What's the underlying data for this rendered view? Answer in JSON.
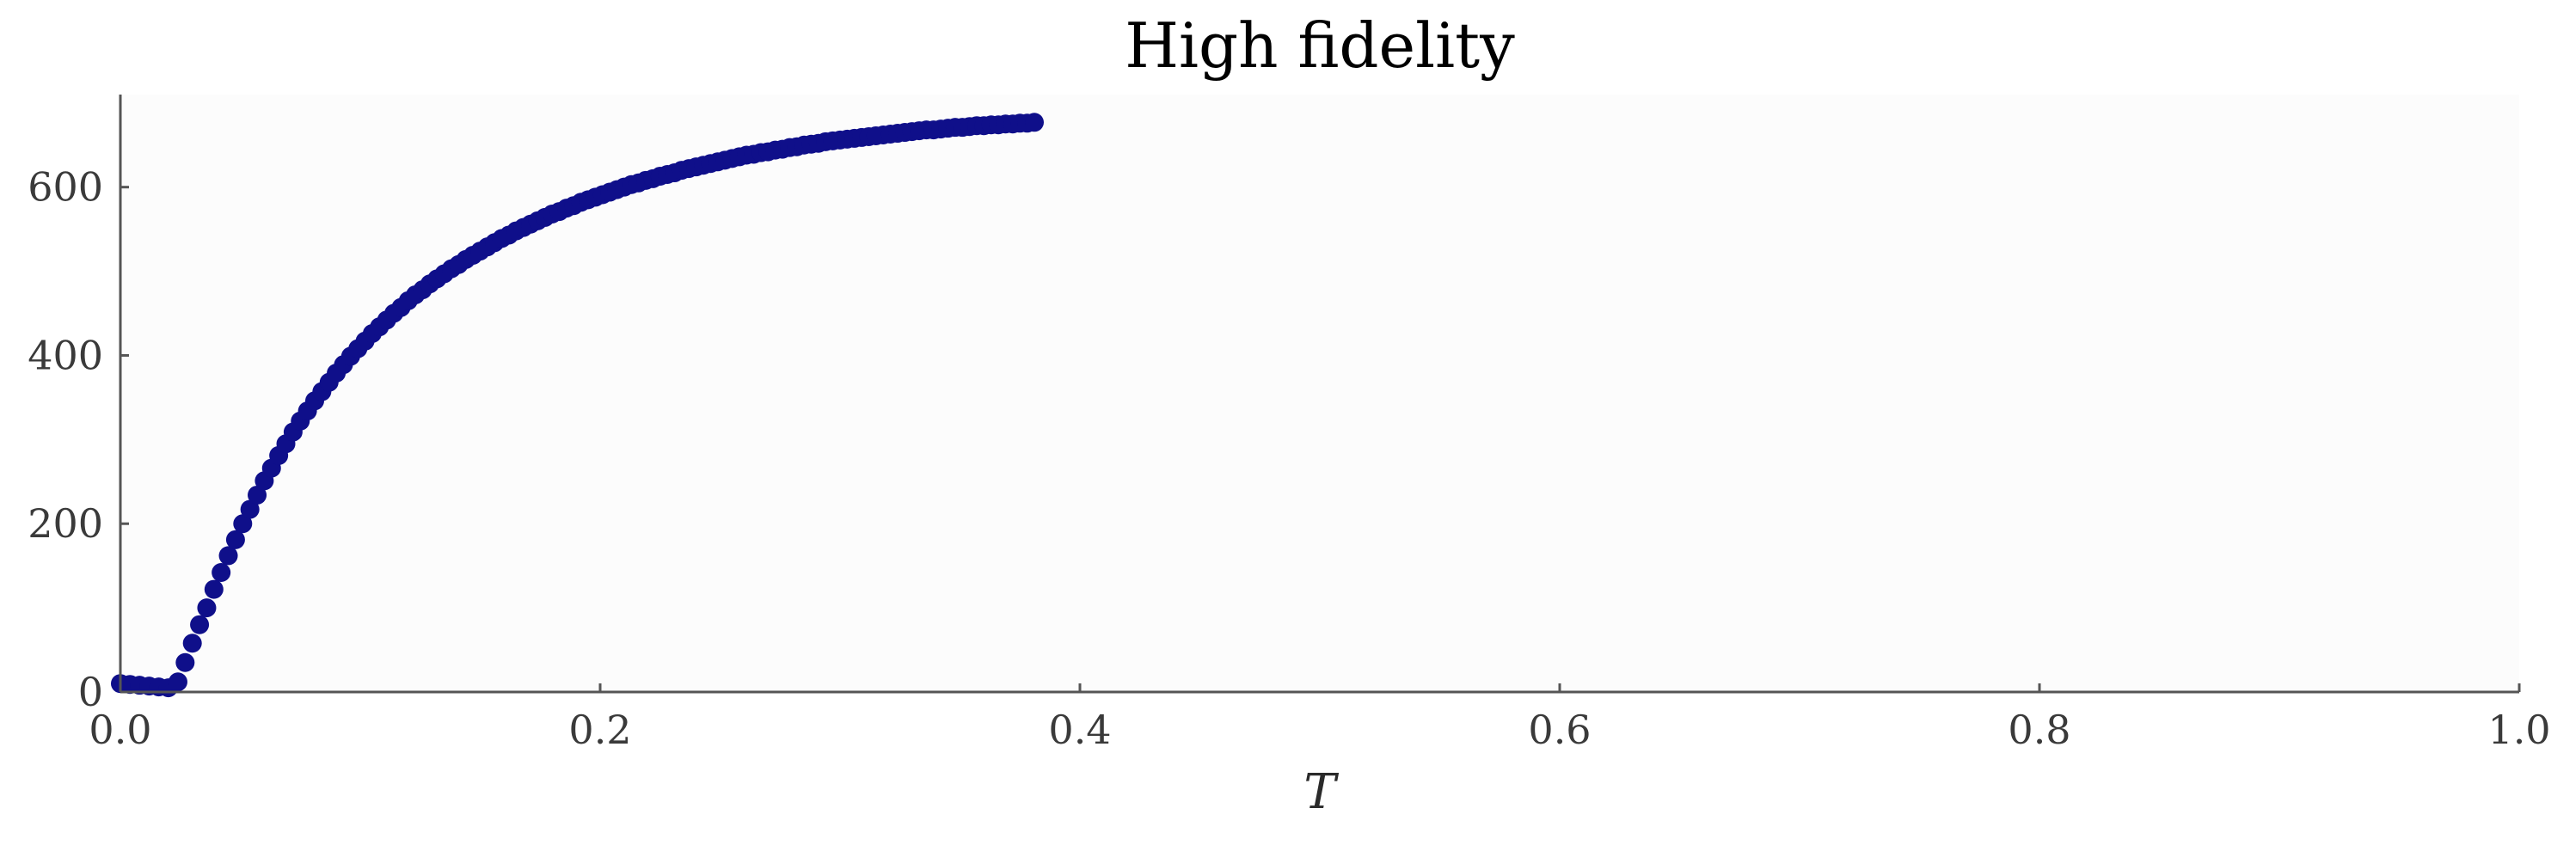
{
  "chart_data": {
    "type": "scatter",
    "title": "High fidelity",
    "xlabel": "T",
    "ylabel": "",
    "xlim": [
      0.0,
      1.0
    ],
    "ylim": [
      0,
      710
    ],
    "x_ticks": [
      "0.0",
      "0.2",
      "0.4",
      "0.6",
      "0.8",
      "1.0"
    ],
    "y_ticks": [
      "0",
      "200",
      "400",
      "600"
    ],
    "grid": false,
    "colors": {
      "series": "#0f0f8a",
      "plot_background": "#fcfcfc",
      "axis": "#555555"
    },
    "series": [
      {
        "x": [
          0.0,
          0.004,
          0.008,
          0.012,
          0.016,
          0.02,
          0.024,
          0.027,
          0.03,
          0.033,
          0.036,
          0.039,
          0.042,
          0.045,
          0.048,
          0.051,
          0.054,
          0.057,
          0.06,
          0.063,
          0.066,
          0.069,
          0.072,
          0.075,
          0.078,
          0.081,
          0.084,
          0.087,
          0.09,
          0.093,
          0.096,
          0.099,
          0.102,
          0.105,
          0.108,
          0.111,
          0.114,
          0.117,
          0.12,
          0.123,
          0.126,
          0.129,
          0.132,
          0.135,
          0.138,
          0.141,
          0.144,
          0.147,
          0.15,
          0.153,
          0.156,
          0.159,
          0.162,
          0.165,
          0.168,
          0.171,
          0.174,
          0.177,
          0.18,
          0.183,
          0.186,
          0.189,
          0.192,
          0.195,
          0.198,
          0.201,
          0.204,
          0.207,
          0.21,
          0.213,
          0.216,
          0.219,
          0.222,
          0.225,
          0.228,
          0.231,
          0.234,
          0.237,
          0.24,
          0.243,
          0.246,
          0.249,
          0.252,
          0.255,
          0.258,
          0.261,
          0.264,
          0.267,
          0.27,
          0.273,
          0.276,
          0.279,
          0.282,
          0.285,
          0.288,
          0.291,
          0.294,
          0.297,
          0.3,
          0.303,
          0.306,
          0.309,
          0.312,
          0.315,
          0.318,
          0.321,
          0.324,
          0.327,
          0.33,
          0.333,
          0.336,
          0.339,
          0.342,
          0.345,
          0.348,
          0.351,
          0.354,
          0.357,
          0.36,
          0.363,
          0.366,
          0.369,
          0.372,
          0.375,
          0.378,
          0.381
        ],
        "y": [
          10,
          9,
          8,
          7,
          6,
          5,
          12,
          35,
          58,
          80,
          100,
          122,
          142,
          162,
          181,
          200,
          217,
          234,
          251,
          266,
          281,
          295,
          309,
          322,
          334,
          346,
          357,
          368,
          379,
          389,
          399,
          408,
          417,
          426,
          434,
          442,
          450,
          457,
          465,
          472,
          478,
          485,
          491,
          497,
          503,
          508,
          514,
          519,
          524,
          529,
          534,
          539,
          543,
          548,
          552,
          556,
          560,
          564,
          568,
          571,
          575,
          578,
          582,
          585,
          588,
          591,
          594,
          597,
          600,
          603,
          605,
          608,
          610,
          613,
          615,
          617,
          620,
          622,
          624,
          626,
          628,
          630,
          632,
          634,
          636,
          638,
          639,
          641,
          642,
          644,
          645,
          647,
          648,
          650,
          651,
          652,
          654,
          655,
          656,
          657,
          658,
          659,
          660,
          661,
          662,
          663,
          664,
          665,
          666,
          667,
          668,
          668,
          669,
          670,
          671,
          671,
          672,
          673,
          673,
          674,
          674,
          675,
          675,
          676,
          676,
          677
        ]
      }
    ]
  }
}
